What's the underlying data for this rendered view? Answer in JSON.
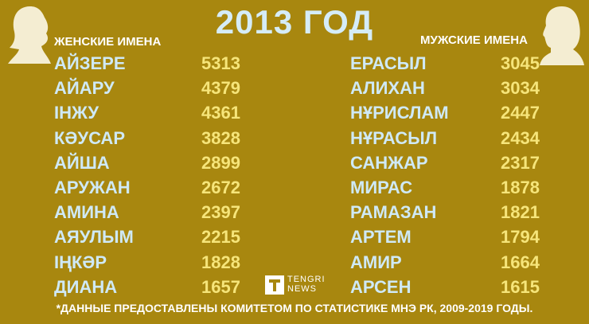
{
  "title": "2013 ГОД",
  "girls": {
    "header": "ЖЕНСКИЕ ИМЕНА",
    "rows": [
      [
        "АЙЗЕРЕ",
        5313
      ],
      [
        "АЙАРУ",
        4379
      ],
      [
        "ІНЖУ",
        4361
      ],
      [
        "КӘУСАР",
        3828
      ],
      [
        "АЙША",
        2899
      ],
      [
        "АРУЖАН",
        2672
      ],
      [
        "АМИНА",
        2397
      ],
      [
        "АЯУЛЫМ",
        2215
      ],
      [
        "ІҢКӘР",
        1828
      ],
      [
        "ДИАНА",
        1657
      ]
    ]
  },
  "boys": {
    "header": "МУЖСКИЕ ИМЕНА",
    "rows": [
      [
        "ЕРАСЫЛ",
        3045
      ],
      [
        "АЛИХАН",
        3034
      ],
      [
        "НҰРИСЛАМ",
        2447
      ],
      [
        "НҰРАСЫЛ",
        2434
      ],
      [
        "САНЖАР",
        2317
      ],
      [
        "МИРАС",
        1878
      ],
      [
        "РАМАЗАН",
        1821
      ],
      [
        "АРТЕМ",
        1794
      ],
      [
        "АМИР",
        1664
      ],
      [
        "АРСЕН",
        1615
      ]
    ]
  },
  "logo": {
    "line1": "TENGRI",
    "line2": "NEWS"
  },
  "footnote": "*ДАННЫЕ ПРЕДОСТАВЛЕНЫ КОМИТЕТОМ ПО СТАТИСТИКЕ МНЭ РК, 2009-2019 ГОДЫ."
}
